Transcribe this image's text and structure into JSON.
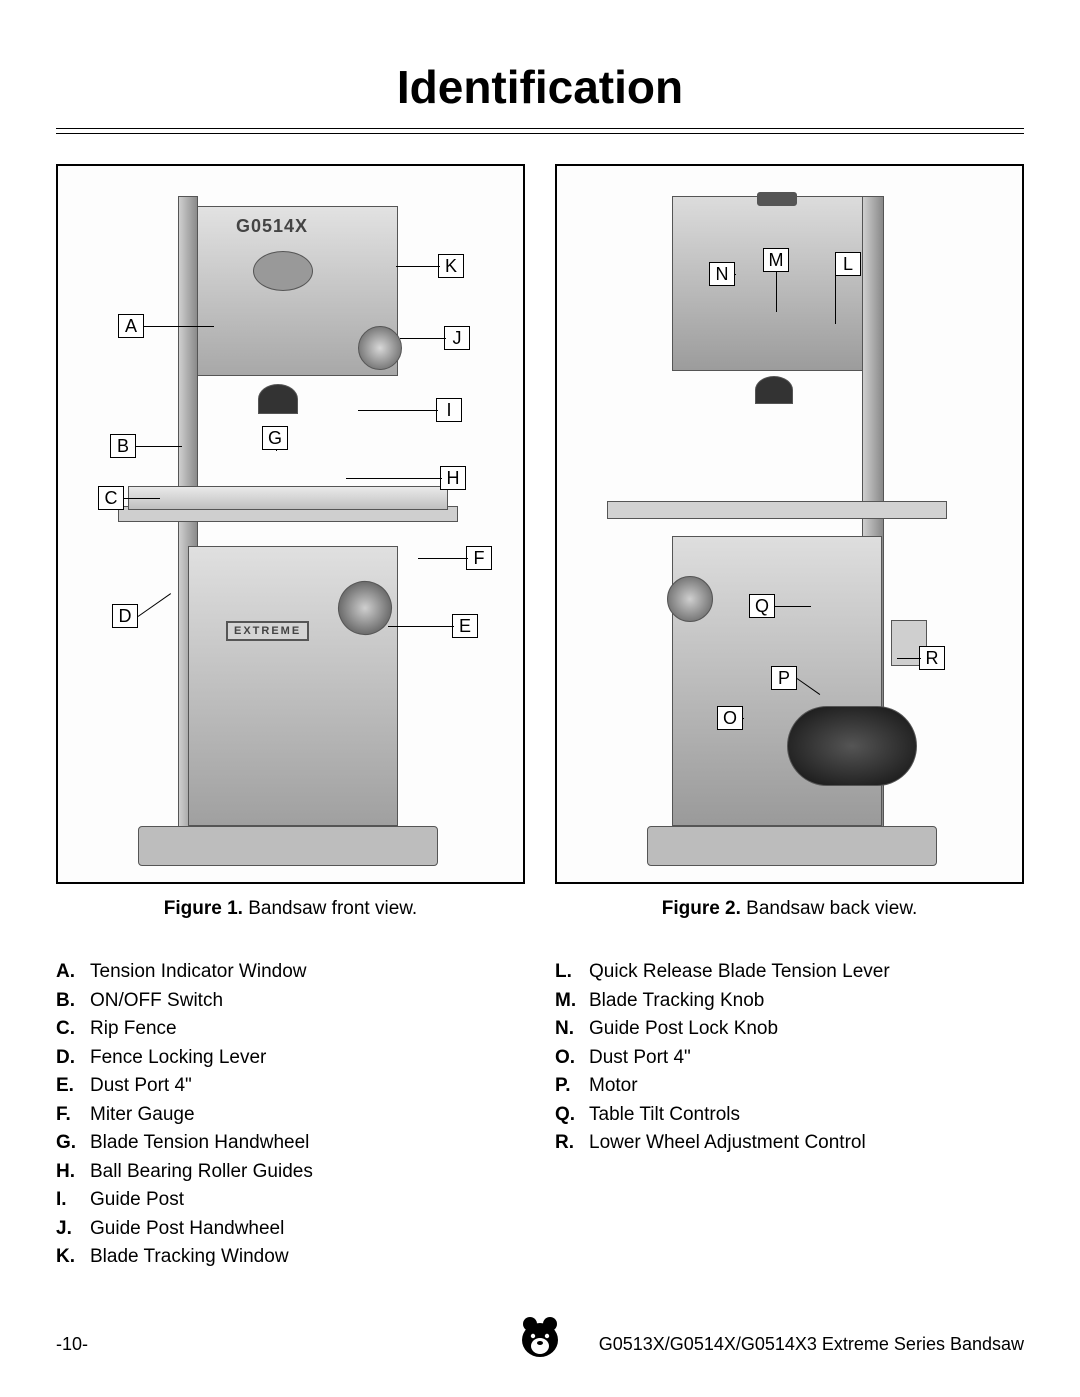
{
  "title": "Identification",
  "pageNumber": "-10-",
  "footerText": "G0513X/G0514X/G0514X3 Extreme Series Bandsaw",
  "modelLabel": "G0514X",
  "extremeLabel": "EXTREME",
  "figures": {
    "fig1": {
      "labelBold": "Figure 1.",
      "labelRest": " Bandsaw front view."
    },
    "fig2": {
      "labelBold": "Figure 2.",
      "labelRest": " Bandsaw back view."
    }
  },
  "callouts1": [
    "A",
    "B",
    "C",
    "D",
    "E",
    "F",
    "G",
    "H",
    "I",
    "J",
    "K"
  ],
  "callouts2": [
    "L",
    "M",
    "N",
    "O",
    "P",
    "Q",
    "R"
  ],
  "partsLeft": [
    {
      "l": "A.",
      "t": "Tension Indicator Window"
    },
    {
      "l": "B.",
      "t": "ON/OFF Switch"
    },
    {
      "l": "C.",
      "t": "Rip Fence"
    },
    {
      "l": "D.",
      "t": "Fence Locking Lever"
    },
    {
      "l": "E.",
      "t": "Dust Port 4\""
    },
    {
      "l": "F.",
      "t": "Miter Gauge"
    },
    {
      "l": "G.",
      "t": "Blade Tension Handwheel"
    },
    {
      "l": "H.",
      "t": "Ball Bearing Roller Guides"
    },
    {
      "l": "I.",
      "t": "Guide Post"
    },
    {
      "l": "J.",
      "t": "Guide Post Handwheel"
    },
    {
      "l": "K.",
      "t": "Blade Tracking Window"
    }
  ],
  "partsRight": [
    {
      "l": "L.",
      "t": "Quick Release Blade Tension Lever"
    },
    {
      "l": "M.",
      "t": "Blade Tracking Knob"
    },
    {
      "l": "N.",
      "t": "Guide Post Lock Knob"
    },
    {
      "l": "O.",
      "t": "Dust Port 4\""
    },
    {
      "l": "P.",
      "t": "Motor"
    },
    {
      "l": "Q.",
      "t": "Table Tilt Controls"
    },
    {
      "l": "R.",
      "t": "Lower Wheel Adjustment Control"
    }
  ]
}
